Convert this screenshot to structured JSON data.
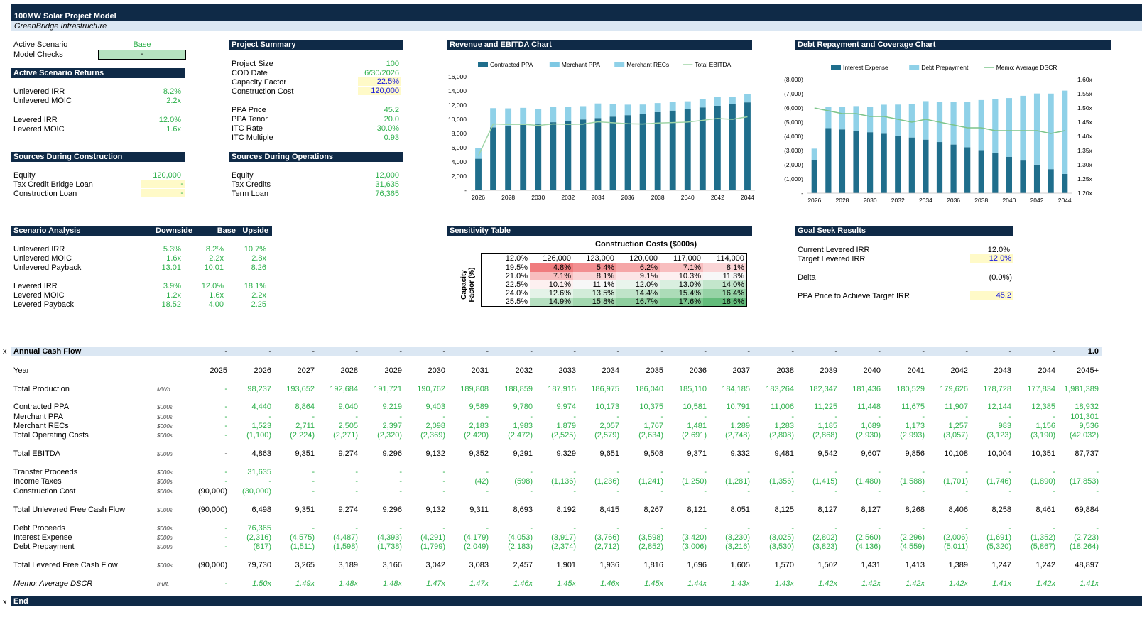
{
  "title": "100MW Solar Project Model",
  "subtitle": "GreenBridge Infrastructure",
  "scenario": {
    "label": "Active Scenario",
    "value": "Base",
    "checks_label": "Model Checks",
    "checks_value": "-"
  },
  "returns": {
    "title": "Active Scenario Returns",
    "rows": [
      {
        "label": "Unlevered IRR",
        "value": "8.2%"
      },
      {
        "label": "Unlevered MOIC",
        "value": "2.2x"
      },
      {
        "label": "Levered IRR",
        "value": "12.0%"
      },
      {
        "label": "Levered MOIC",
        "value": "1.6x"
      }
    ]
  },
  "sources_construction": {
    "title": "Sources During Construction",
    "rows": [
      {
        "label": "Equity",
        "value": "120,000"
      },
      {
        "label": "Tax Credit Bridge Loan",
        "value": "-"
      },
      {
        "label": "Construction Loan",
        "value": "-"
      }
    ]
  },
  "project_summary": {
    "title": "Project Summary",
    "rows": [
      {
        "label": "Project Size",
        "value": "100"
      },
      {
        "label": "COD Date",
        "value": "6/30/2026"
      },
      {
        "label": "Capacity Factor",
        "value": "22.5%"
      },
      {
        "label": "Construction Cost",
        "value": "120,000"
      },
      {
        "label": "PPA Price",
        "value": "45.2"
      },
      {
        "label": "PPA Tenor",
        "value": "20.0"
      },
      {
        "label": "ITC Rate",
        "value": "30.0%"
      },
      {
        "label": "ITC Multiple",
        "value": "0.93"
      }
    ]
  },
  "sources_operations": {
    "title": "Sources During Operations",
    "rows": [
      {
        "label": "Equity",
        "value": "12,000"
      },
      {
        "label": "Tax Credits",
        "value": "31,635"
      },
      {
        "label": "Term Loan",
        "value": "76,365"
      }
    ]
  },
  "scenario_analysis": {
    "title": "Scenario Analysis",
    "cols": [
      "Downside",
      "Base",
      "Upside"
    ],
    "rows": [
      {
        "label": "Unlevered IRR",
        "values": [
          "5.3%",
          "8.2%",
          "10.7%"
        ]
      },
      {
        "label": "Unlevered MOIC",
        "values": [
          "1.6x",
          "2.2x",
          "2.8x"
        ]
      },
      {
        "label": "Unlevered Payback",
        "values": [
          "13.01",
          "10.01",
          "8.26"
        ]
      },
      {
        "label": "Levered IRR",
        "values": [
          "3.9%",
          "12.0%",
          "18.1%"
        ]
      },
      {
        "label": "Levered MOIC",
        "values": [
          "1.2x",
          "1.6x",
          "2.2x"
        ]
      },
      {
        "label": "Levered Payback",
        "values": [
          "18.52",
          "4.00",
          "2.25"
        ]
      }
    ]
  },
  "sensitivity": {
    "title": "Sensitivity Table",
    "col_title": "Construction Costs ($000s)",
    "row_title": "Capacity Factor (%)",
    "corner": "12.0%",
    "cols": [
      "126,000",
      "123,000",
      "120,000",
      "117,000",
      "114,000"
    ],
    "rows": [
      {
        "label": "19.5%",
        "values": [
          "4.8%",
          "5.4%",
          "6.2%",
          "7.1%",
          "8.1%"
        ],
        "colors": [
          "#f07c7e",
          "#f28f91",
          "#f5a6a7",
          "#f8bebf",
          "#fad5d6"
        ]
      },
      {
        "label": "21.0%",
        "values": [
          "7.1%",
          "8.1%",
          "9.1%",
          "10.3%",
          "11.3%"
        ],
        "colors": [
          "#f8bebf",
          "#fad5d6",
          "#fce5e6",
          "#fdf0f0",
          "#f7f7f7"
        ]
      },
      {
        "label": "22.5%",
        "values": [
          "10.1%",
          "11.1%",
          "12.0%",
          "13.0%",
          "14.0%"
        ],
        "colors": [
          "#fdf0f0",
          "#f7f7f7",
          "#e9f5ec",
          "#d9efdf",
          "#c3e6cc"
        ]
      },
      {
        "label": "24.0%",
        "values": [
          "12.6%",
          "13.5%",
          "14.4%",
          "15.4%",
          "16.4%"
        ],
        "colors": [
          "#e4f3e8",
          "#d2ecd9",
          "#c0e4c9",
          "#acdcb8",
          "#96d3a6"
        ]
      },
      {
        "label": "25.5%",
        "values": [
          "14.9%",
          "15.8%",
          "16.7%",
          "17.6%",
          "18.6%"
        ],
        "colors": [
          "#b6e0c1",
          "#a3d8b0",
          "#8fcf9f",
          "#7cc78f",
          "#63bc7b"
        ]
      }
    ]
  },
  "goal_seek": {
    "title": "Goal Seek Results",
    "rows": [
      {
        "label": "Current Levered IRR",
        "value": "12.0%"
      },
      {
        "label": "Target Levered IRR",
        "value": "12.0%"
      },
      {
        "label": "Delta",
        "value": "(0.0%)"
      },
      {
        "label": "PPA Price to Achieve Target IRR",
        "value": "45.2"
      }
    ]
  },
  "chart_data": [
    {
      "type": "bar",
      "title": "Revenue and EBITDA Chart",
      "categories": [
        "2026",
        "2027",
        "2028",
        "2029",
        "2030",
        "2031",
        "2032",
        "2033",
        "2034",
        "2035",
        "2036",
        "2037",
        "2038",
        "2039",
        "2040",
        "2041",
        "2042",
        "2043",
        "2044"
      ],
      "x_tick_labels": [
        "2026",
        "2028",
        "2030",
        "2032",
        "2034",
        "2036",
        "2038",
        "2040",
        "2042",
        "2044"
      ],
      "ylim": [
        0,
        16000
      ],
      "y_ticks": [
        "-",
        "2,000",
        "4,000",
        "6,000",
        "8,000",
        "10,000",
        "12,000",
        "14,000",
        "16,000"
      ],
      "stacked": true,
      "series": [
        {
          "name": "Contracted PPA",
          "kind": "bar",
          "color": "#1f6e8c",
          "values": [
            4440,
            8864,
            9040,
            9219,
            9403,
            9589,
            9780,
            9974,
            10173,
            10375,
            10581,
            10791,
            11006,
            11225,
            11448,
            11675,
            11907,
            12144,
            12385
          ]
        },
        {
          "name": "Merchant PPA",
          "kind": "bar",
          "color": "#7ec8e3",
          "values": [
            0,
            0,
            0,
            0,
            0,
            0,
            0,
            0,
            0,
            0,
            0,
            0,
            0,
            0,
            0,
            0,
            0,
            0,
            0
          ]
        },
        {
          "name": "Merchant RECs",
          "kind": "bar",
          "color": "#8fd1e8",
          "values": [
            1523,
            2711,
            2505,
            2397,
            2098,
            2183,
            1983,
            1879,
            2057,
            1767,
            1481,
            1289,
            1283,
            1185,
            1089,
            1173,
            1257,
            983,
            1156
          ]
        },
        {
          "name": "Total EBITDA",
          "kind": "line",
          "color": "#9fd4a6",
          "values": [
            4863,
            9351,
            9274,
            9296,
            9132,
            9352,
            9291,
            9329,
            9651,
            9508,
            9371,
            9332,
            9481,
            9542,
            9607,
            9856,
            10108,
            10004,
            10351
          ]
        }
      ]
    },
    {
      "type": "bar",
      "title": "Debt Repayment and Coverage Chart",
      "categories": [
        "2026",
        "2027",
        "2028",
        "2029",
        "2030",
        "2031",
        "2032",
        "2033",
        "2034",
        "2035",
        "2036",
        "2037",
        "2038",
        "2039",
        "2040",
        "2041",
        "2042",
        "2043",
        "2044"
      ],
      "x_tick_labels": [
        "2026",
        "2028",
        "2030",
        "2032",
        "2034",
        "2036",
        "2038",
        "2040",
        "2042",
        "2044"
      ],
      "ylim": [
        0,
        8000
      ],
      "y_ticks": [
        "-",
        "(1,000)",
        "(2,000)",
        "(3,000)",
        "(4,000)",
        "(5,000)",
        "(6,000)",
        "(7,000)",
        "(8,000)"
      ],
      "y2lim": [
        1.2,
        1.6
      ],
      "y2_ticks": [
        "1.20x",
        "1.25x",
        "1.30x",
        "1.35x",
        "1.40x",
        "1.45x",
        "1.50x",
        "1.55x",
        "1.60x"
      ],
      "stacked": true,
      "series": [
        {
          "name": "Interest Expense",
          "kind": "bar",
          "color": "#1f6e8c",
          "values": [
            2316,
            4575,
            4487,
            4393,
            4291,
            4179,
            4053,
            3917,
            3766,
            3598,
            3420,
            3230,
            3025,
            2802,
            2560,
            2296,
            2006,
            1691,
            1352
          ]
        },
        {
          "name": "Debt Prepayment",
          "kind": "bar",
          "color": "#8fd1e8",
          "values": [
            817,
            1511,
            1598,
            1738,
            1799,
            2049,
            2183,
            2374,
            2712,
            2852,
            3006,
            3216,
            3530,
            3823,
            4136,
            4559,
            5011,
            5320,
            5867
          ]
        },
        {
          "name": "Memo: Average DSCR",
          "kind": "line",
          "axis": "right",
          "color": "#7cc48a",
          "values": [
            1.5,
            1.49,
            1.48,
            1.48,
            1.47,
            1.47,
            1.46,
            1.45,
            1.46,
            1.45,
            1.44,
            1.43,
            1.43,
            1.42,
            1.42,
            1.42,
            1.42,
            1.41,
            1.42
          ]
        }
      ]
    }
  ],
  "cashflow": {
    "band_left": "x",
    "title": "Annual Cash Flow",
    "band_values": [
      "-",
      "-",
      "-",
      "-",
      "-",
      "-",
      "-",
      "-",
      "-",
      "-",
      "-",
      "-",
      "-",
      "-",
      "-",
      "-",
      "-",
      "-",
      "-",
      "-",
      "1.0"
    ],
    "year_label": "Year",
    "years": [
      "2025",
      "2026",
      "2027",
      "2028",
      "2029",
      "2030",
      "2031",
      "2032",
      "2033",
      "2034",
      "2035",
      "2036",
      "2037",
      "2038",
      "2039",
      "2040",
      "2041",
      "2042",
      "2043",
      "2044",
      "2045+"
    ],
    "rows": [
      {
        "label": "Total Production",
        "unit": "MWh",
        "style": "g",
        "top": 542,
        "values": [
          "-",
          "98,237",
          "193,652",
          "192,684",
          "191,721",
          "190,762",
          "189,808",
          "188,859",
          "187,915",
          "186,975",
          "186,040",
          "185,110",
          "184,185",
          "183,264",
          "182,347",
          "181,436",
          "180,529",
          "179,626",
          "178,728",
          "177,834",
          "1,981,389"
        ]
      },
      {
        "label": "Contracted PPA",
        "unit": "$000s",
        "style": "g",
        "top": 567,
        "values": [
          "-",
          "4,440",
          "8,864",
          "9,040",
          "9,219",
          "9,403",
          "9,589",
          "9,780",
          "9,974",
          "10,173",
          "10,375",
          "10,581",
          "10,791",
          "11,006",
          "11,225",
          "11,448",
          "11,675",
          "11,907",
          "12,144",
          "12,385",
          "18,932"
        ]
      },
      {
        "label": "Merchant PPA",
        "unit": "$000s",
        "style": "g",
        "top": 581,
        "values": [
          "-",
          "-",
          "-",
          "-",
          "-",
          "-",
          "-",
          "-",
          "-",
          "-",
          "-",
          "-",
          "-",
          "-",
          "-",
          "-",
          "-",
          "-",
          "-",
          "-",
          "101,301"
        ]
      },
      {
        "label": "Merchant RECs",
        "unit": "$000s",
        "style": "g",
        "top": 594,
        "values": [
          "-",
          "1,523",
          "2,711",
          "2,505",
          "2,397",
          "2,098",
          "2,183",
          "1,983",
          "1,879",
          "2,057",
          "1,767",
          "1,481",
          "1,289",
          "1,283",
          "1,185",
          "1,089",
          "1,173",
          "1,257",
          "983",
          "1,156",
          "9,536"
        ]
      },
      {
        "label": "Total Operating Costs",
        "unit": "$000s",
        "style": "g",
        "top": 607,
        "values": [
          "-",
          "(1,100)",
          "(2,224)",
          "(2,271)",
          "(2,320)",
          "(2,369)",
          "(2,420)",
          "(2,472)",
          "(2,525)",
          "(2,579)",
          "(2,634)",
          "(2,691)",
          "(2,748)",
          "(2,808)",
          "(2,868)",
          "(2,930)",
          "(2,993)",
          "(3,057)",
          "(3,123)",
          "(3,190)",
          "(42,032)"
        ]
      },
      {
        "label": "Total EBITDA",
        "unit": "$000s",
        "style": "k",
        "top": 633,
        "values": [
          "-",
          "4,863",
          "9,351",
          "9,274",
          "9,296",
          "9,132",
          "9,352",
          "9,291",
          "9,329",
          "9,651",
          "9,508",
          "9,371",
          "9,332",
          "9,481",
          "9,542",
          "9,607",
          "9,856",
          "10,108",
          "10,004",
          "10,351",
          "87,737"
        ]
      },
      {
        "label": "Transfer Proceeds",
        "unit": "$000s",
        "style": "g",
        "top": 659,
        "values": [
          "-",
          "31,635",
          "-",
          "-",
          "-",
          "-",
          "-",
          "-",
          "-",
          "-",
          "-",
          "-",
          "-",
          "-",
          "-",
          "-",
          "-",
          "-",
          "-",
          "-",
          "-"
        ]
      },
      {
        "label": "Income Taxes",
        "unit": "$000s",
        "style": "g",
        "top": 672,
        "values": [
          "-",
          "-",
          "-",
          "-",
          "-",
          "-",
          "(42)",
          "(598)",
          "(1,136)",
          "(1,236)",
          "(1,241)",
          "(1,250)",
          "(1,281)",
          "(1,356)",
          "(1,415)",
          "(1,480)",
          "(1,588)",
          "(1,701)",
          "(1,746)",
          "(1,890)",
          "(17,853)"
        ]
      },
      {
        "label": "Construction Cost",
        "unit": "$000s",
        "style": "g",
        "top": 686,
        "values": [
          "(90,000)",
          "(30,000)",
          "-",
          "-",
          "-",
          "-",
          "-",
          "-",
          "-",
          "-",
          "-",
          "-",
          "-",
          "-",
          "-",
          "-",
          "-",
          "-",
          "-",
          "-",
          "-"
        ]
      },
      {
        "label": "Total Unlevered Free Cash Flow",
        "unit": "$000s",
        "style": "k",
        "top": 712,
        "values": [
          "(90,000)",
          "6,498",
          "9,351",
          "9,274",
          "9,296",
          "9,132",
          "9,311",
          "8,693",
          "8,192",
          "8,415",
          "8,267",
          "8,121",
          "8,051",
          "8,125",
          "8,127",
          "8,127",
          "8,268",
          "8,406",
          "8,258",
          "8,461",
          "69,884"
        ]
      },
      {
        "label": "Debt Proceeds",
        "unit": "$000s",
        "style": "g",
        "top": 738,
        "values": [
          "-",
          "76,365",
          "-",
          "-",
          "-",
          "-",
          "-",
          "-",
          "-",
          "-",
          "-",
          "-",
          "-",
          "-",
          "-",
          "-",
          "-",
          "-",
          "-",
          "-",
          "-"
        ]
      },
      {
        "label": "Interest Expense",
        "unit": "$000s",
        "style": "g",
        "top": 751,
        "values": [
          "-",
          "(2,316)",
          "(4,575)",
          "(4,487)",
          "(4,393)",
          "(4,291)",
          "(4,179)",
          "(4,053)",
          "(3,917)",
          "(3,766)",
          "(3,598)",
          "(3,420)",
          "(3,230)",
          "(3,025)",
          "(2,802)",
          "(2,560)",
          "(2,296)",
          "(2,006)",
          "(1,691)",
          "(1,352)",
          "(2,723)"
        ]
      },
      {
        "label": "Debt Prepayment",
        "unit": "$000s",
        "style": "g",
        "top": 764,
        "values": [
          "-",
          "(817)",
          "(1,511)",
          "(1,598)",
          "(1,738)",
          "(1,799)",
          "(2,049)",
          "(2,183)",
          "(2,374)",
          "(2,712)",
          "(2,852)",
          "(3,006)",
          "(3,216)",
          "(3,530)",
          "(3,823)",
          "(4,136)",
          "(4,559)",
          "(5,011)",
          "(5,320)",
          "(5,867)",
          "(18,264)"
        ]
      },
      {
        "label": "Total Levered Free Cash Flow",
        "unit": "$000s",
        "style": "k",
        "top": 790,
        "values": [
          "(90,000)",
          "79,730",
          "3,265",
          "3,189",
          "3,166",
          "3,042",
          "3,083",
          "2,457",
          "1,901",
          "1,936",
          "1,816",
          "1,696",
          "1,605",
          "1,570",
          "1,502",
          "1,431",
          "1,413",
          "1,389",
          "1,247",
          "1,242",
          "48,897"
        ]
      },
      {
        "label": "Memo: Average DSCR",
        "unit": "mult.",
        "style": "gi",
        "top": 816,
        "values": [
          "-",
          "1.50x",
          "1.49x",
          "1.48x",
          "1.48x",
          "1.47x",
          "1.47x",
          "1.46x",
          "1.45x",
          "1.46x",
          "1.45x",
          "1.44x",
          "1.43x",
          "1.43x",
          "1.42x",
          "1.42x",
          "1.42x",
          "1.42x",
          "1.41x",
          "1.42x",
          "1.41x"
        ]
      }
    ],
    "end_left": "x",
    "end_label": "End"
  }
}
